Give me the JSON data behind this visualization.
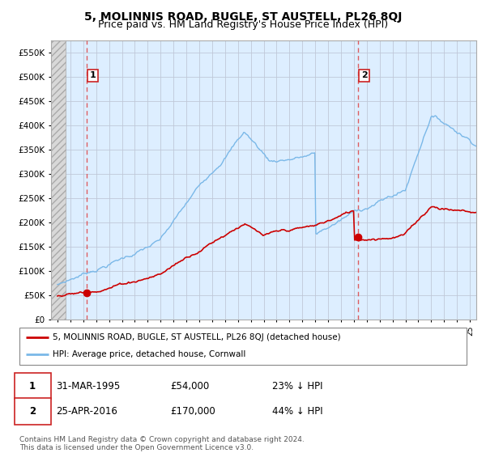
{
  "title": "5, MOLINNIS ROAD, BUGLE, ST AUSTELL, PL26 8QJ",
  "subtitle": "Price paid vs. HM Land Registry's House Price Index (HPI)",
  "ylabel_ticks": [
    "£0",
    "£50K",
    "£100K",
    "£150K",
    "£200K",
    "£250K",
    "£300K",
    "£350K",
    "£400K",
    "£450K",
    "£500K",
    "£550K"
  ],
  "ytick_vals": [
    0,
    50000,
    100000,
    150000,
    200000,
    250000,
    300000,
    350000,
    400000,
    450000,
    500000,
    550000
  ],
  "ylim": [
    0,
    575000
  ],
  "xlim_start": 1992.5,
  "xlim_end": 2025.5,
  "hpi_color": "#7ab8e8",
  "price_color": "#cc0000",
  "dashed_line_color": "#dd4444",
  "purchase1_date": 1995.25,
  "purchase1_price": 54000,
  "purchase2_date": 2016.32,
  "purchase2_price": 170000,
  "legend_house_label": "5, MOLINNIS ROAD, BUGLE, ST AUSTELL, PL26 8QJ (detached house)",
  "legend_hpi_label": "HPI: Average price, detached house, Cornwall",
  "footnote": "Contains HM Land Registry data © Crown copyright and database right 2024.\nThis data is licensed under the Open Government Licence v3.0.",
  "bg_main_color": "#ddeeff",
  "bg_hatch_color": "#d8d8d8",
  "grid_color": "#c0c8d8",
  "title_fontsize": 10,
  "subtitle_fontsize": 9
}
